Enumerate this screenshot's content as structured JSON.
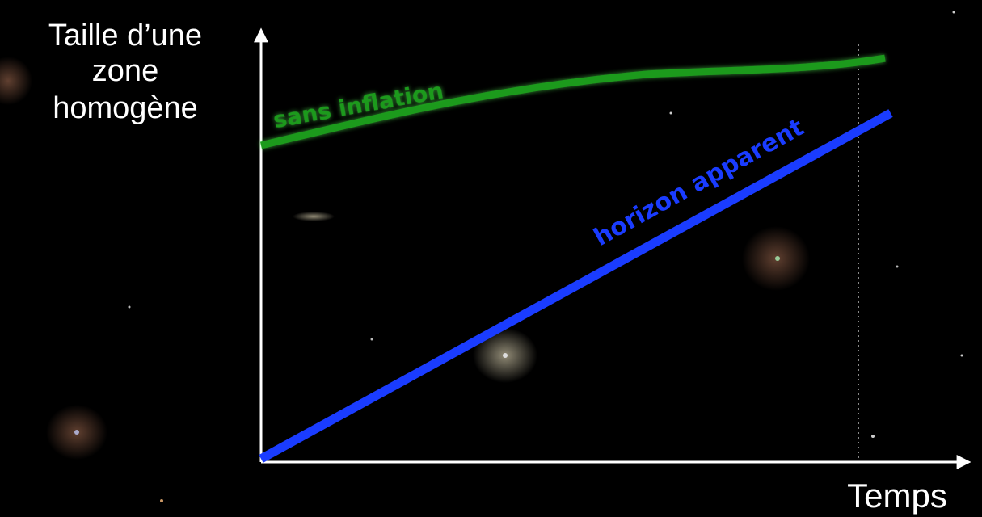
{
  "y_axis_label": [
    "Taille d’une",
    "zone",
    "homogène"
  ],
  "x_axis_label": "Temps",
  "curves": [
    {
      "label": "sans inflation"
    },
    {
      "label": "horizon apparent"
    }
  ]
}
